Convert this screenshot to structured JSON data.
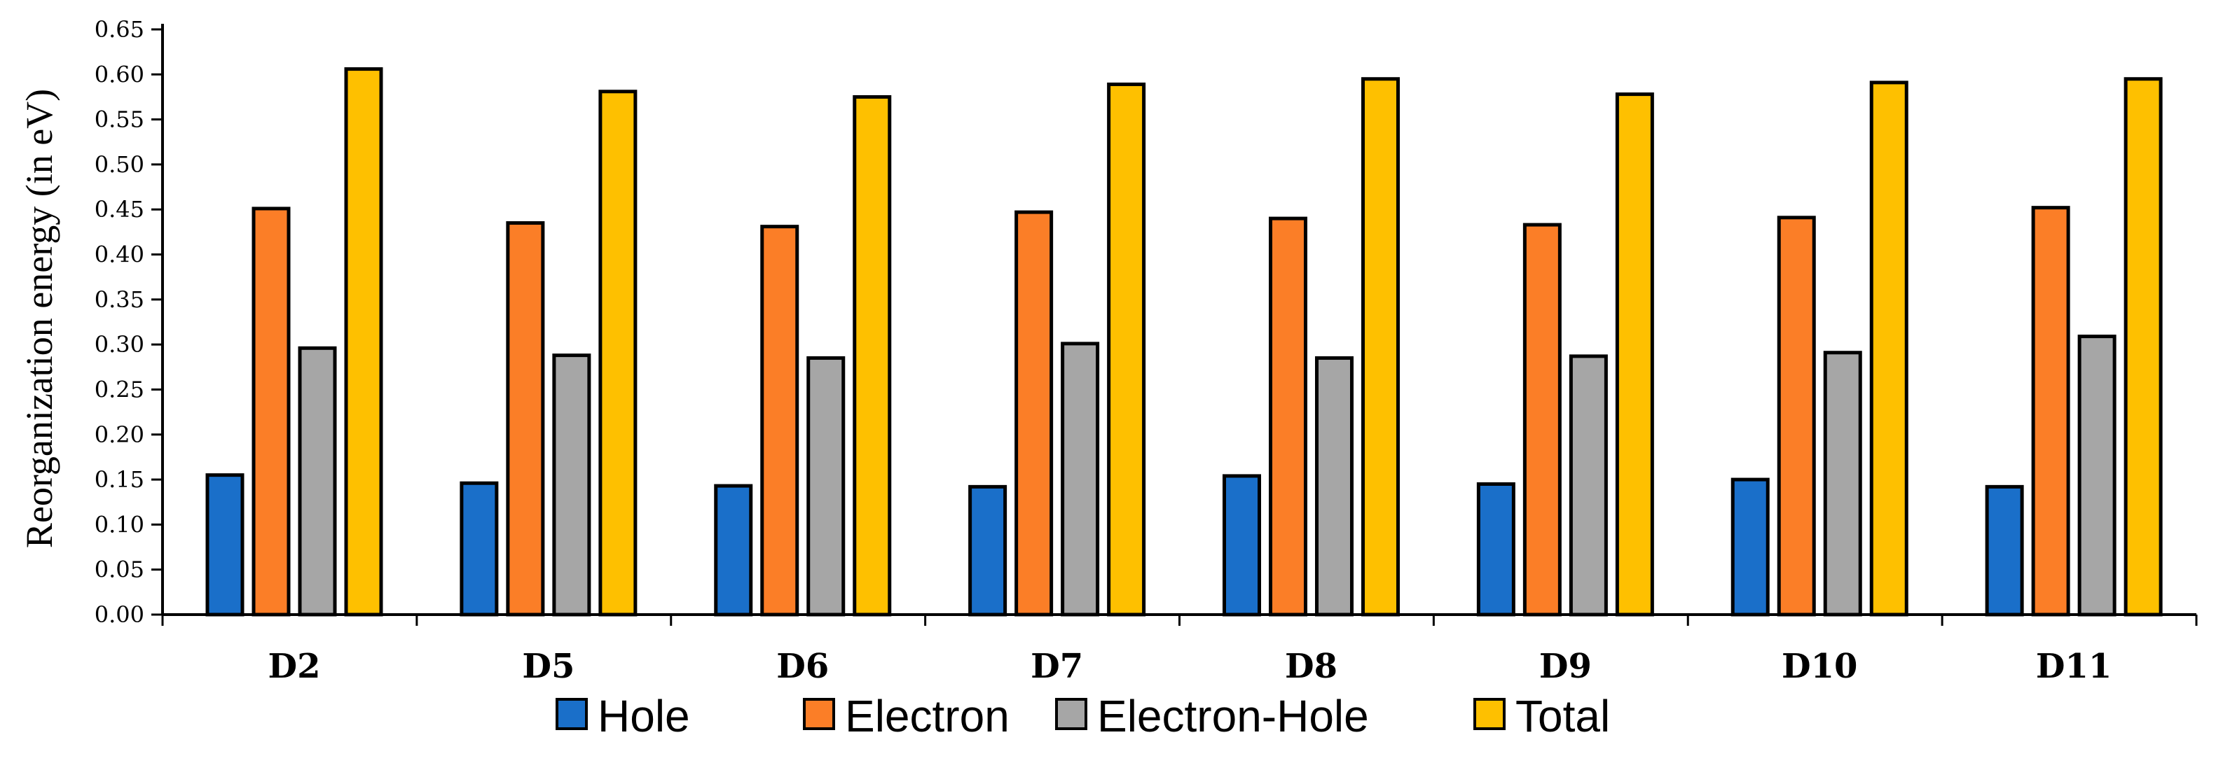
{
  "chart_data": {
    "type": "bar",
    "title": "",
    "xlabel": "",
    "ylabel": "Reorganization energy (in eV)",
    "ylim": [
      0,
      0.65
    ],
    "ytick_step": 0.05,
    "yticks": [
      "0.00",
      "0.05",
      "0.10",
      "0.15",
      "0.20",
      "0.25",
      "0.30",
      "0.35",
      "0.40",
      "0.45",
      "0.50",
      "0.55",
      "0.60",
      "0.65"
    ],
    "grid": false,
    "legend_position": "bottom",
    "categories": [
      "D2",
      "D5",
      "D6",
      "D7",
      "D8",
      "D9",
      "D10",
      "D11"
    ],
    "series": [
      {
        "name": "Hole",
        "color": "#1A6FC9",
        "values": [
          0.155,
          0.146,
          0.143,
          0.142,
          0.154,
          0.145,
          0.15,
          0.142
        ]
      },
      {
        "name": "Electron",
        "color": "#FB7E27",
        "values": [
          0.451,
          0.435,
          0.431,
          0.447,
          0.44,
          0.433,
          0.441,
          0.452
        ]
      },
      {
        "name": "Electron-Hole",
        "color": "#A6A6A6",
        "values": [
          0.296,
          0.288,
          0.285,
          0.301,
          0.285,
          0.287,
          0.291,
          0.309
        ]
      },
      {
        "name": "Total",
        "color": "#FEC000",
        "values": [
          0.606,
          0.581,
          0.575,
          0.589,
          0.595,
          0.578,
          0.591,
          0.595
        ]
      }
    ]
  }
}
